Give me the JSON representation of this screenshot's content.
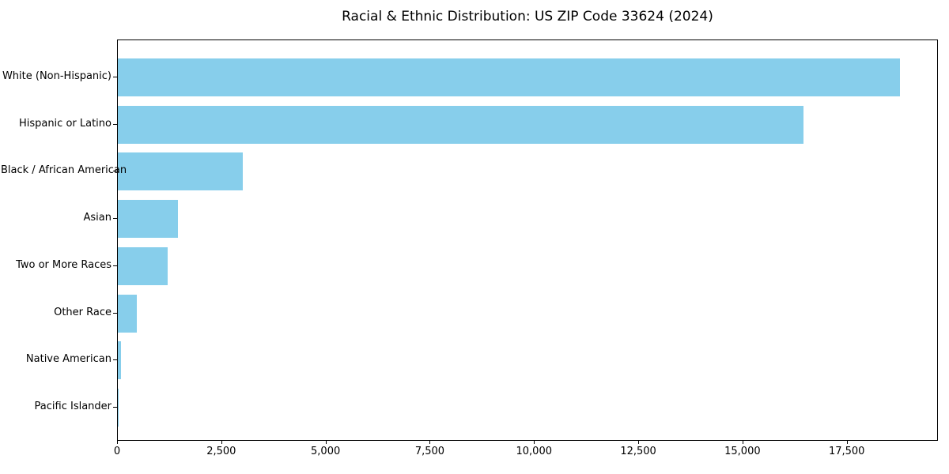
{
  "chart_data": {
    "type": "bar",
    "orientation": "horizontal",
    "title": "Racial & Ethnic Distribution: US ZIP Code 33624 (2024)",
    "categories": [
      "White (Non-Hispanic)",
      "Hispanic or Latino",
      "Black / African American",
      "Asian",
      "Two or More Races",
      "Other Race",
      "Native American",
      "Pacific Islander"
    ],
    "values": [
      18750,
      16450,
      3000,
      1450,
      1200,
      450,
      80,
      15
    ],
    "xlabel": "",
    "ylabel": "",
    "xlim": [
      0,
      19687
    ],
    "x_tick_values": [
      0,
      2500,
      5000,
      7500,
      10000,
      12500,
      15000,
      17500
    ],
    "x_tick_labels": [
      "0",
      "2,500",
      "5,000",
      "7,500",
      "10,000",
      "12,500",
      "15,000",
      "17,500"
    ],
    "bar_color": "#87CEEB",
    "grid": false,
    "legend": false
  }
}
